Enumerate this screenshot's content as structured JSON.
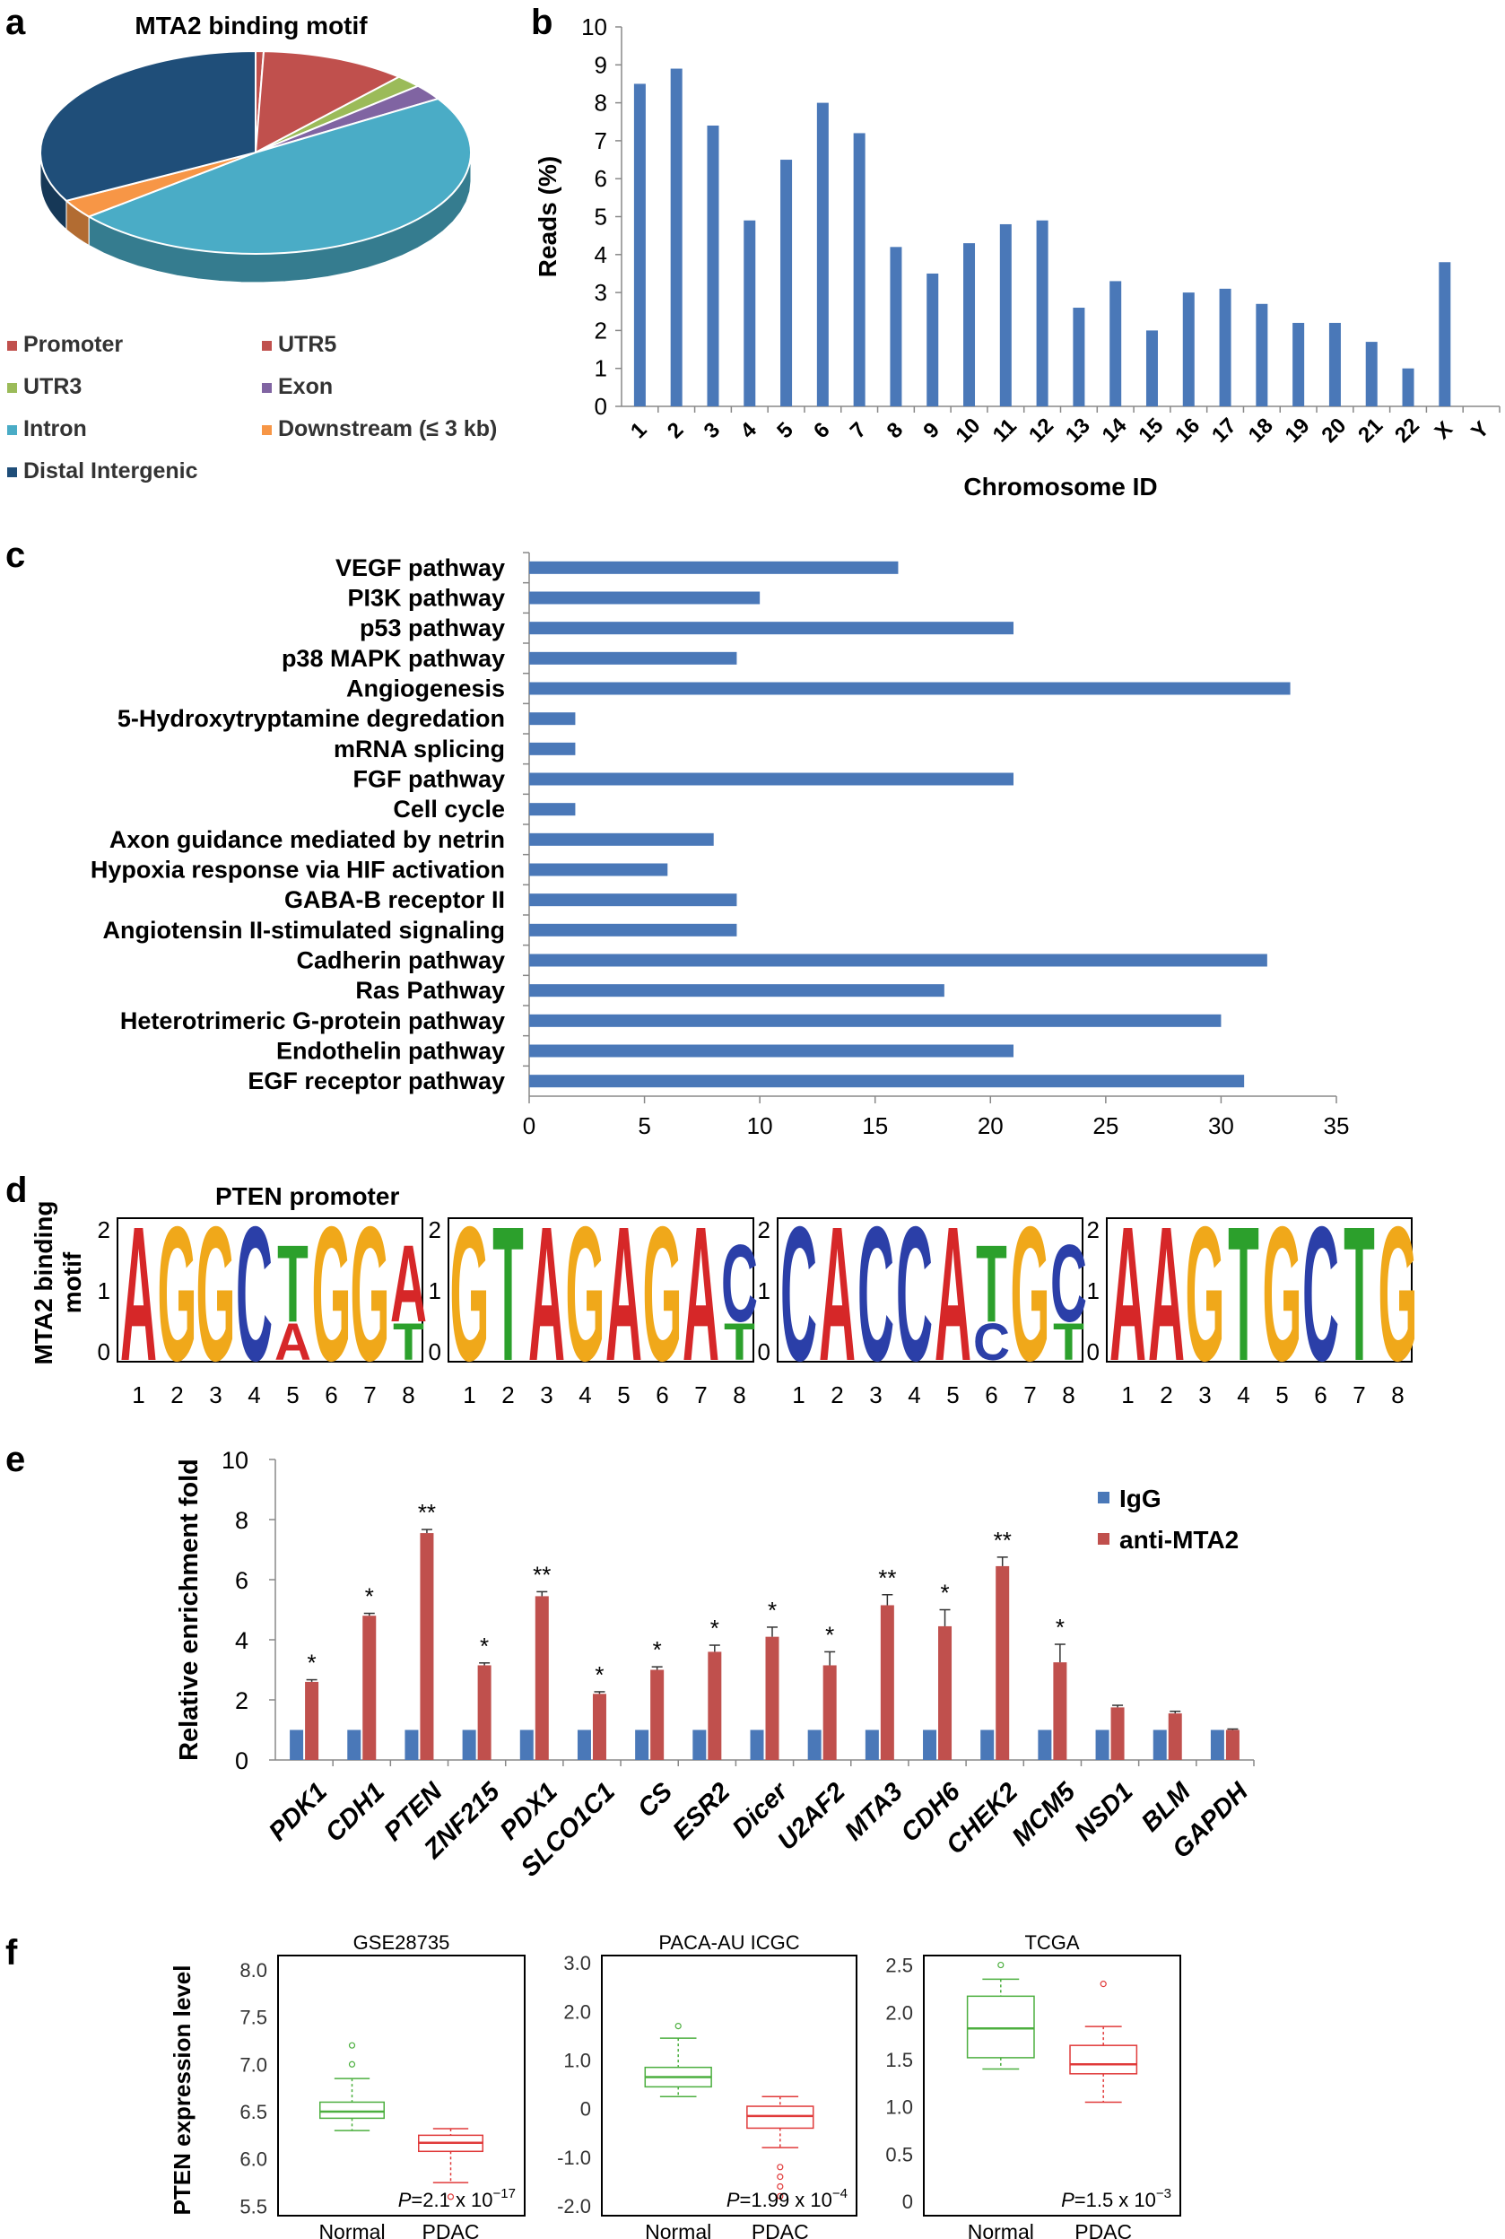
{
  "colors": {
    "blue": "#4a78b8",
    "red": "#c0504d",
    "green": "#4caf3f",
    "light_red": "#e03a3a",
    "purple": "#7b62a3",
    "cyan": "#4aacc6",
    "orange": "#f0954a",
    "navy": "#1f4e79",
    "teal": "#4aacc6"
  },
  "panels": {
    "a": "a",
    "b": "b",
    "c": "c",
    "d": "d",
    "e": "e",
    "f": "f"
  },
  "chart_data": [
    {
      "id": "a",
      "type": "pie",
      "title": "MTA2 binding motif",
      "labels": [
        "Promoter",
        "UTR5",
        "UTR3",
        "Exon",
        "Intron",
        "Downstream (≤ 3 kb)",
        "Distal Intergenic"
      ],
      "values": [
        0.6,
        11.0,
        2.0,
        2.5,
        48.0,
        3.0,
        32.9
      ],
      "colors": [
        "#c0504d",
        "#c0504d",
        "#9bbb59",
        "#8064a2",
        "#4aacc6",
        "#f79646",
        "#1f4e79"
      ]
    },
    {
      "id": "b",
      "type": "bar",
      "title": "",
      "xlabel": "Chromosome ID",
      "ylabel": "Reads (%)",
      "ylim": [
        0,
        10
      ],
      "yticks": [
        "0",
        "1",
        "2",
        "3",
        "4",
        "5",
        "6",
        "7",
        "8",
        "9",
        "10"
      ],
      "categories": [
        "1",
        "2",
        "3",
        "4",
        "5",
        "6",
        "7",
        "8",
        "9",
        "10",
        "11",
        "12",
        "13",
        "14",
        "15",
        "16",
        "17",
        "18",
        "19",
        "20",
        "21",
        "22",
        "X",
        "Y"
      ],
      "values": [
        8.5,
        8.9,
        7.4,
        4.9,
        6.5,
        8.0,
        7.2,
        4.2,
        3.5,
        4.3,
        4.8,
        4.9,
        2.6,
        3.3,
        2.0,
        3.0,
        3.1,
        2.7,
        2.2,
        2.2,
        1.7,
        1.0,
        3.8,
        0
      ]
    },
    {
      "id": "c",
      "type": "bar",
      "orientation": "horizontal",
      "xlim": [
        0,
        35
      ],
      "xticks": [
        "0",
        "5",
        "10",
        "15",
        "20",
        "25",
        "30",
        "35"
      ],
      "categories": [
        "VEGF pathway",
        "PI3K pathway",
        "p53 pathway",
        "p38 MAPK pathway",
        "Angiogenesis",
        "5-Hydroxytryptamine degredation",
        "mRNA splicing",
        "FGF pathway",
        "Cell cycle",
        "Axon guidance mediated by netrin",
        "Hypoxia response via HIF activation",
        "GABA-B receptor II",
        "Angiotensin II-stimulated signaling",
        "Cadherin pathway",
        "Ras Pathway",
        "Heterotrimeric G-protein pathway",
        "Endothelin pathway",
        "EGF receptor pathway"
      ],
      "values": [
        16,
        10,
        21,
        9,
        33,
        2,
        2,
        21,
        2,
        8,
        6,
        9,
        9,
        32,
        18,
        30,
        21,
        31
      ]
    },
    {
      "id": "d",
      "type": "sequence-logo",
      "title": "PTEN promoter",
      "ylabel": "MTA2 binding motif",
      "yticks": [
        "0",
        "1",
        "2"
      ],
      "positions": [
        "1",
        "2",
        "3",
        "4",
        "5",
        "6",
        "7",
        "8"
      ],
      "motifs": [
        [
          [
            "A"
          ],
          [
            "G"
          ],
          [
            "G"
          ],
          [
            "C"
          ],
          [
            "T",
            "A"
          ],
          [
            "G"
          ],
          [
            "G"
          ],
          [
            "A",
            "T"
          ]
        ],
        [
          [
            "G"
          ],
          [
            "T"
          ],
          [
            "A"
          ],
          [
            "G"
          ],
          [
            "A"
          ],
          [
            "G"
          ],
          [
            "A"
          ],
          [
            "C",
            "T"
          ]
        ],
        [
          [
            "C"
          ],
          [
            "A"
          ],
          [
            "C"
          ],
          [
            "C"
          ],
          [
            "A"
          ],
          [
            "T",
            "C"
          ],
          [
            "G"
          ],
          [
            "C",
            "T"
          ]
        ],
        [
          [
            "A"
          ],
          [
            "A"
          ],
          [
            "G"
          ],
          [
            "T"
          ],
          [
            "G"
          ],
          [
            "C"
          ],
          [
            "T"
          ],
          [
            "G"
          ]
        ]
      ]
    },
    {
      "id": "e",
      "type": "bar",
      "ylabel": "Relative enrichment fold",
      "ylim": [
        0,
        10
      ],
      "yticks": [
        "0",
        "2",
        "4",
        "6",
        "8",
        "10"
      ],
      "categories": [
        "PDK1",
        "CDH1",
        "PTEN",
        "ZNF215",
        "PDX1",
        "SLCO1C1",
        "CS",
        "ESR2",
        "Dicer",
        "U2AF2",
        "MTA3",
        "CDH6",
        "CHEK2",
        "MCM5",
        "NSD1",
        "BLM",
        "GAPDH"
      ],
      "series": [
        {
          "name": "IgG",
          "values": [
            1,
            1,
            1,
            1,
            1,
            1,
            1,
            1,
            1,
            1,
            1,
            1,
            1,
            1,
            1,
            1,
            1
          ]
        },
        {
          "name": "anti-MTA2",
          "values": [
            2.6,
            4.8,
            7.55,
            3.15,
            5.45,
            2.2,
            3.0,
            3.6,
            4.1,
            3.15,
            5.15,
            4.45,
            6.45,
            3.25,
            1.75,
            1.55,
            1.0
          ],
          "errors": [
            0.07,
            0.08,
            0.12,
            0.08,
            0.15,
            0.07,
            0.1,
            0.22,
            0.32,
            0.45,
            0.35,
            0.55,
            0.3,
            0.6,
            0.07,
            0.07,
            0.03
          ]
        }
      ],
      "significance": [
        "*",
        "*",
        "**",
        "*",
        "**",
        "*",
        "*",
        "*",
        "*",
        "*",
        "**",
        "*",
        "**",
        "*",
        "",
        "",
        ""
      ]
    },
    {
      "id": "f",
      "type": "boxplot",
      "ylabel": "PTEN expression level",
      "groups": [
        "Normal",
        "PDAC"
      ],
      "plots": [
        {
          "title": "GSE28735",
          "yticks": [
            "5.5",
            "6.0",
            "6.5",
            "7.0",
            "7.5",
            "8.0"
          ],
          "ylim": [
            5.4,
            8.15
          ],
          "p_prefix": "P",
          "p_value": "=2.1 x 10",
          "p_exp": "−17",
          "boxes": [
            {
              "whisker_low": 6.3,
              "q1": 6.43,
              "median": 6.5,
              "q3": 6.6,
              "whisker_high": 6.85,
              "outliers": [
                7.0,
                7.2
              ]
            },
            {
              "whisker_low": 5.75,
              "q1": 6.08,
              "median": 6.17,
              "q3": 6.25,
              "whisker_high": 6.32,
              "outliers": [
                5.6
              ]
            }
          ]
        },
        {
          "title": "PACA-AU  ICGC",
          "yticks": [
            "-2.0",
            "-1.0",
            "0",
            "1.0",
            "2.0",
            "3.0"
          ],
          "ylim": [
            -2.2,
            3.15
          ],
          "p_prefix": "P",
          "p_value": "=1.99 x 10",
          "p_exp": "−4",
          "boxes": [
            {
              "whisker_low": 0.25,
              "q1": 0.45,
              "median": 0.65,
              "q3": 0.85,
              "whisker_high": 1.45,
              "outliers": [
                1.7
              ]
            },
            {
              "whisker_low": -0.8,
              "q1": -0.4,
              "median": -0.15,
              "q3": 0.05,
              "whisker_high": 0.25,
              "outliers": [
                -1.2,
                -1.4,
                -1.6,
                -1.8
              ]
            }
          ]
        },
        {
          "title": "TCGA",
          "yticks": [
            "0",
            "0.5",
            "1.0",
            "1.5",
            "2.0",
            "2.5"
          ],
          "ylim": [
            -0.15,
            2.6
          ],
          "p_prefix": "P",
          "p_value": "=1.5 x 10",
          "p_exp": "−3",
          "boxes": [
            {
              "whisker_low": 1.4,
              "q1": 1.52,
              "median": 1.83,
              "q3": 2.17,
              "whisker_high": 2.35,
              "outliers": [
                2.5
              ]
            },
            {
              "whisker_low": 1.05,
              "q1": 1.35,
              "median": 1.45,
              "q3": 1.65,
              "whisker_high": 1.85,
              "outliers": [
                2.3
              ]
            }
          ]
        }
      ]
    }
  ]
}
